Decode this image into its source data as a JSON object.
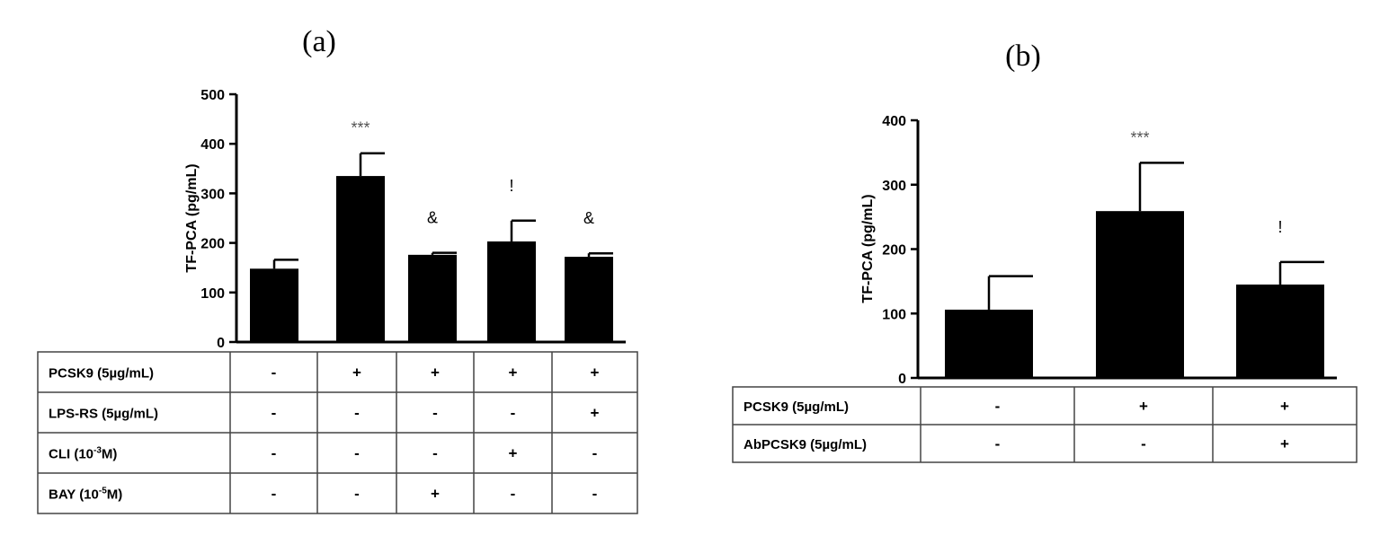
{
  "chart_data": [
    {
      "panel": "(a)",
      "type": "bar",
      "ylabel": "TF-PCA (pg/mL)",
      "ylim": [
        0,
        500
      ],
      "yticks": [
        0,
        100,
        200,
        300,
        400,
        500
      ],
      "values": [
        148,
        335,
        176,
        203,
        172
      ],
      "errors": [
        18,
        46,
        4,
        42,
        7
      ],
      "annotations": [
        "",
        "***",
        "&",
        "!",
        "&"
      ],
      "table": {
        "rows": [
          {
            "label": "PCSK9 (5µg/mL)",
            "base": "PCSK9 (5µg/mL)",
            "sup": "",
            "tail": "",
            "cells": [
              "-",
              "+",
              "+",
              "+",
              "+"
            ]
          },
          {
            "label": "LPS-RS (5µg/mL)",
            "base": "LPS-RS (5µg/mL)",
            "sup": "",
            "tail": "",
            "cells": [
              "-",
              "-",
              "-",
              "-",
              "+"
            ]
          },
          {
            "label": "CLI (10-3M)",
            "base": "CLI (10",
            "sup": "-3",
            "tail": "M)",
            "cells": [
              "-",
              "-",
              "-",
              "+",
              "-"
            ]
          },
          {
            "label": "BAY (10-5M)",
            "base": "BAY (10",
            "sup": "-5",
            "tail": "M)",
            "cells": [
              "-",
              "-",
              "+",
              "-",
              "-"
            ]
          }
        ]
      }
    },
    {
      "panel": "(b)",
      "type": "bar",
      "ylabel": "TF-PCA (pg/mL)",
      "ylim": [
        0,
        400
      ],
      "yticks": [
        0,
        100,
        200,
        300,
        400
      ],
      "values": [
        106,
        259,
        145
      ],
      "errors": [
        52,
        75,
        35
      ],
      "annotations": [
        "",
        "***",
        "!"
      ],
      "table": {
        "rows": [
          {
            "label": "PCSK9 (5µg/mL)",
            "base": "PCSK9 (5µg/mL)",
            "sup": "",
            "tail": "",
            "cells": [
              "-",
              "+",
              "+"
            ]
          },
          {
            "label": "AbPCSK9 (5µg/mL)",
            "base": "AbPCSK9 (5µg/mL)",
            "sup": "",
            "tail": "",
            "cells": [
              "-",
              "-",
              "+"
            ]
          }
        ]
      }
    }
  ]
}
